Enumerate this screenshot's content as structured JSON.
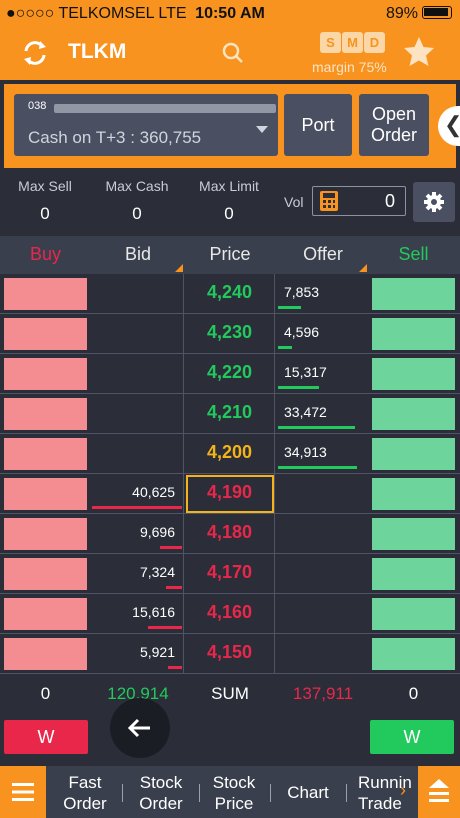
{
  "status": {
    "carrier": "●○○○○ TELKOMSEL  LTE",
    "time": "10:50 AM",
    "battery": "89%"
  },
  "header": {
    "ticker": "TLKM",
    "badges": [
      "S",
      "M",
      "D"
    ],
    "margin": "margin 75%"
  },
  "account": {
    "number_prefix": "038",
    "cash": "Cash on T+3 : 360,755",
    "port_label": "Port",
    "open_order_label": "Open\nOrder"
  },
  "limits": {
    "max_sell_label": "Max Sell",
    "max_sell": "0",
    "max_cash_label": "Max Cash",
    "max_cash": "0",
    "max_limit_label": "Max Limit",
    "max_limit": "0",
    "vol_label": "Vol",
    "vol": "0"
  },
  "columns": {
    "buy": "Buy",
    "bid": "Bid",
    "price": "Price",
    "offer": "Offer",
    "sell": "Sell"
  },
  "book": [
    {
      "bid": "",
      "price": "4,240",
      "offer": "7,853",
      "color": "#22c95c",
      "bidbar": 0,
      "offbar": 0.25
    },
    {
      "bid": "",
      "price": "4,230",
      "offer": "4,596",
      "color": "#22c95c",
      "bidbar": 0,
      "offbar": 0.15
    },
    {
      "bid": "",
      "price": "4,220",
      "offer": "15,317",
      "color": "#22c95c",
      "bidbar": 0,
      "offbar": 0.45
    },
    {
      "bid": "",
      "price": "4,210",
      "offer": "33,472",
      "color": "#22c95c",
      "bidbar": 0,
      "offbar": 0.85
    },
    {
      "bid": "",
      "price": "4,200",
      "offer": "34,913",
      "color": "#f2b418",
      "bidbar": 0,
      "offbar": 0.88
    },
    {
      "bid": "40,625",
      "price": "4,190",
      "offer": "",
      "color": "#e8274b",
      "bidbar": 1.0,
      "offbar": 0,
      "highlight": true
    },
    {
      "bid": "9,696",
      "price": "4,180",
      "offer": "",
      "color": "#e8274b",
      "bidbar": 0.24,
      "offbar": 0
    },
    {
      "bid": "7,324",
      "price": "4,170",
      "offer": "",
      "color": "#e8274b",
      "bidbar": 0.18,
      "offbar": 0
    },
    {
      "bid": "15,616",
      "price": "4,160",
      "offer": "",
      "color": "#e8274b",
      "bidbar": 0.38,
      "offbar": 0
    },
    {
      "bid": "5,921",
      "price": "4,150",
      "offer": "",
      "color": "#e8274b",
      "bidbar": 0.15,
      "offbar": 0
    }
  ],
  "sum": {
    "buy": "0",
    "bid": "120,914",
    "label": "SUM",
    "offer": "137,911",
    "sell": "0"
  },
  "w_buy": "W",
  "w_sell": "W",
  "nav": [
    {
      "label": "Fast\nOrder"
    },
    {
      "label": "Stock\nOrder"
    },
    {
      "label": "Stock\nPrice"
    },
    {
      "label": "Chart"
    },
    {
      "label": "Runnin\nTrade"
    }
  ],
  "colors": {
    "accent": "#f7931e",
    "buy": "#f38d92",
    "sell": "#6dd49c",
    "up": "#22c95c",
    "down": "#e8274b",
    "flat": "#f2b418"
  }
}
